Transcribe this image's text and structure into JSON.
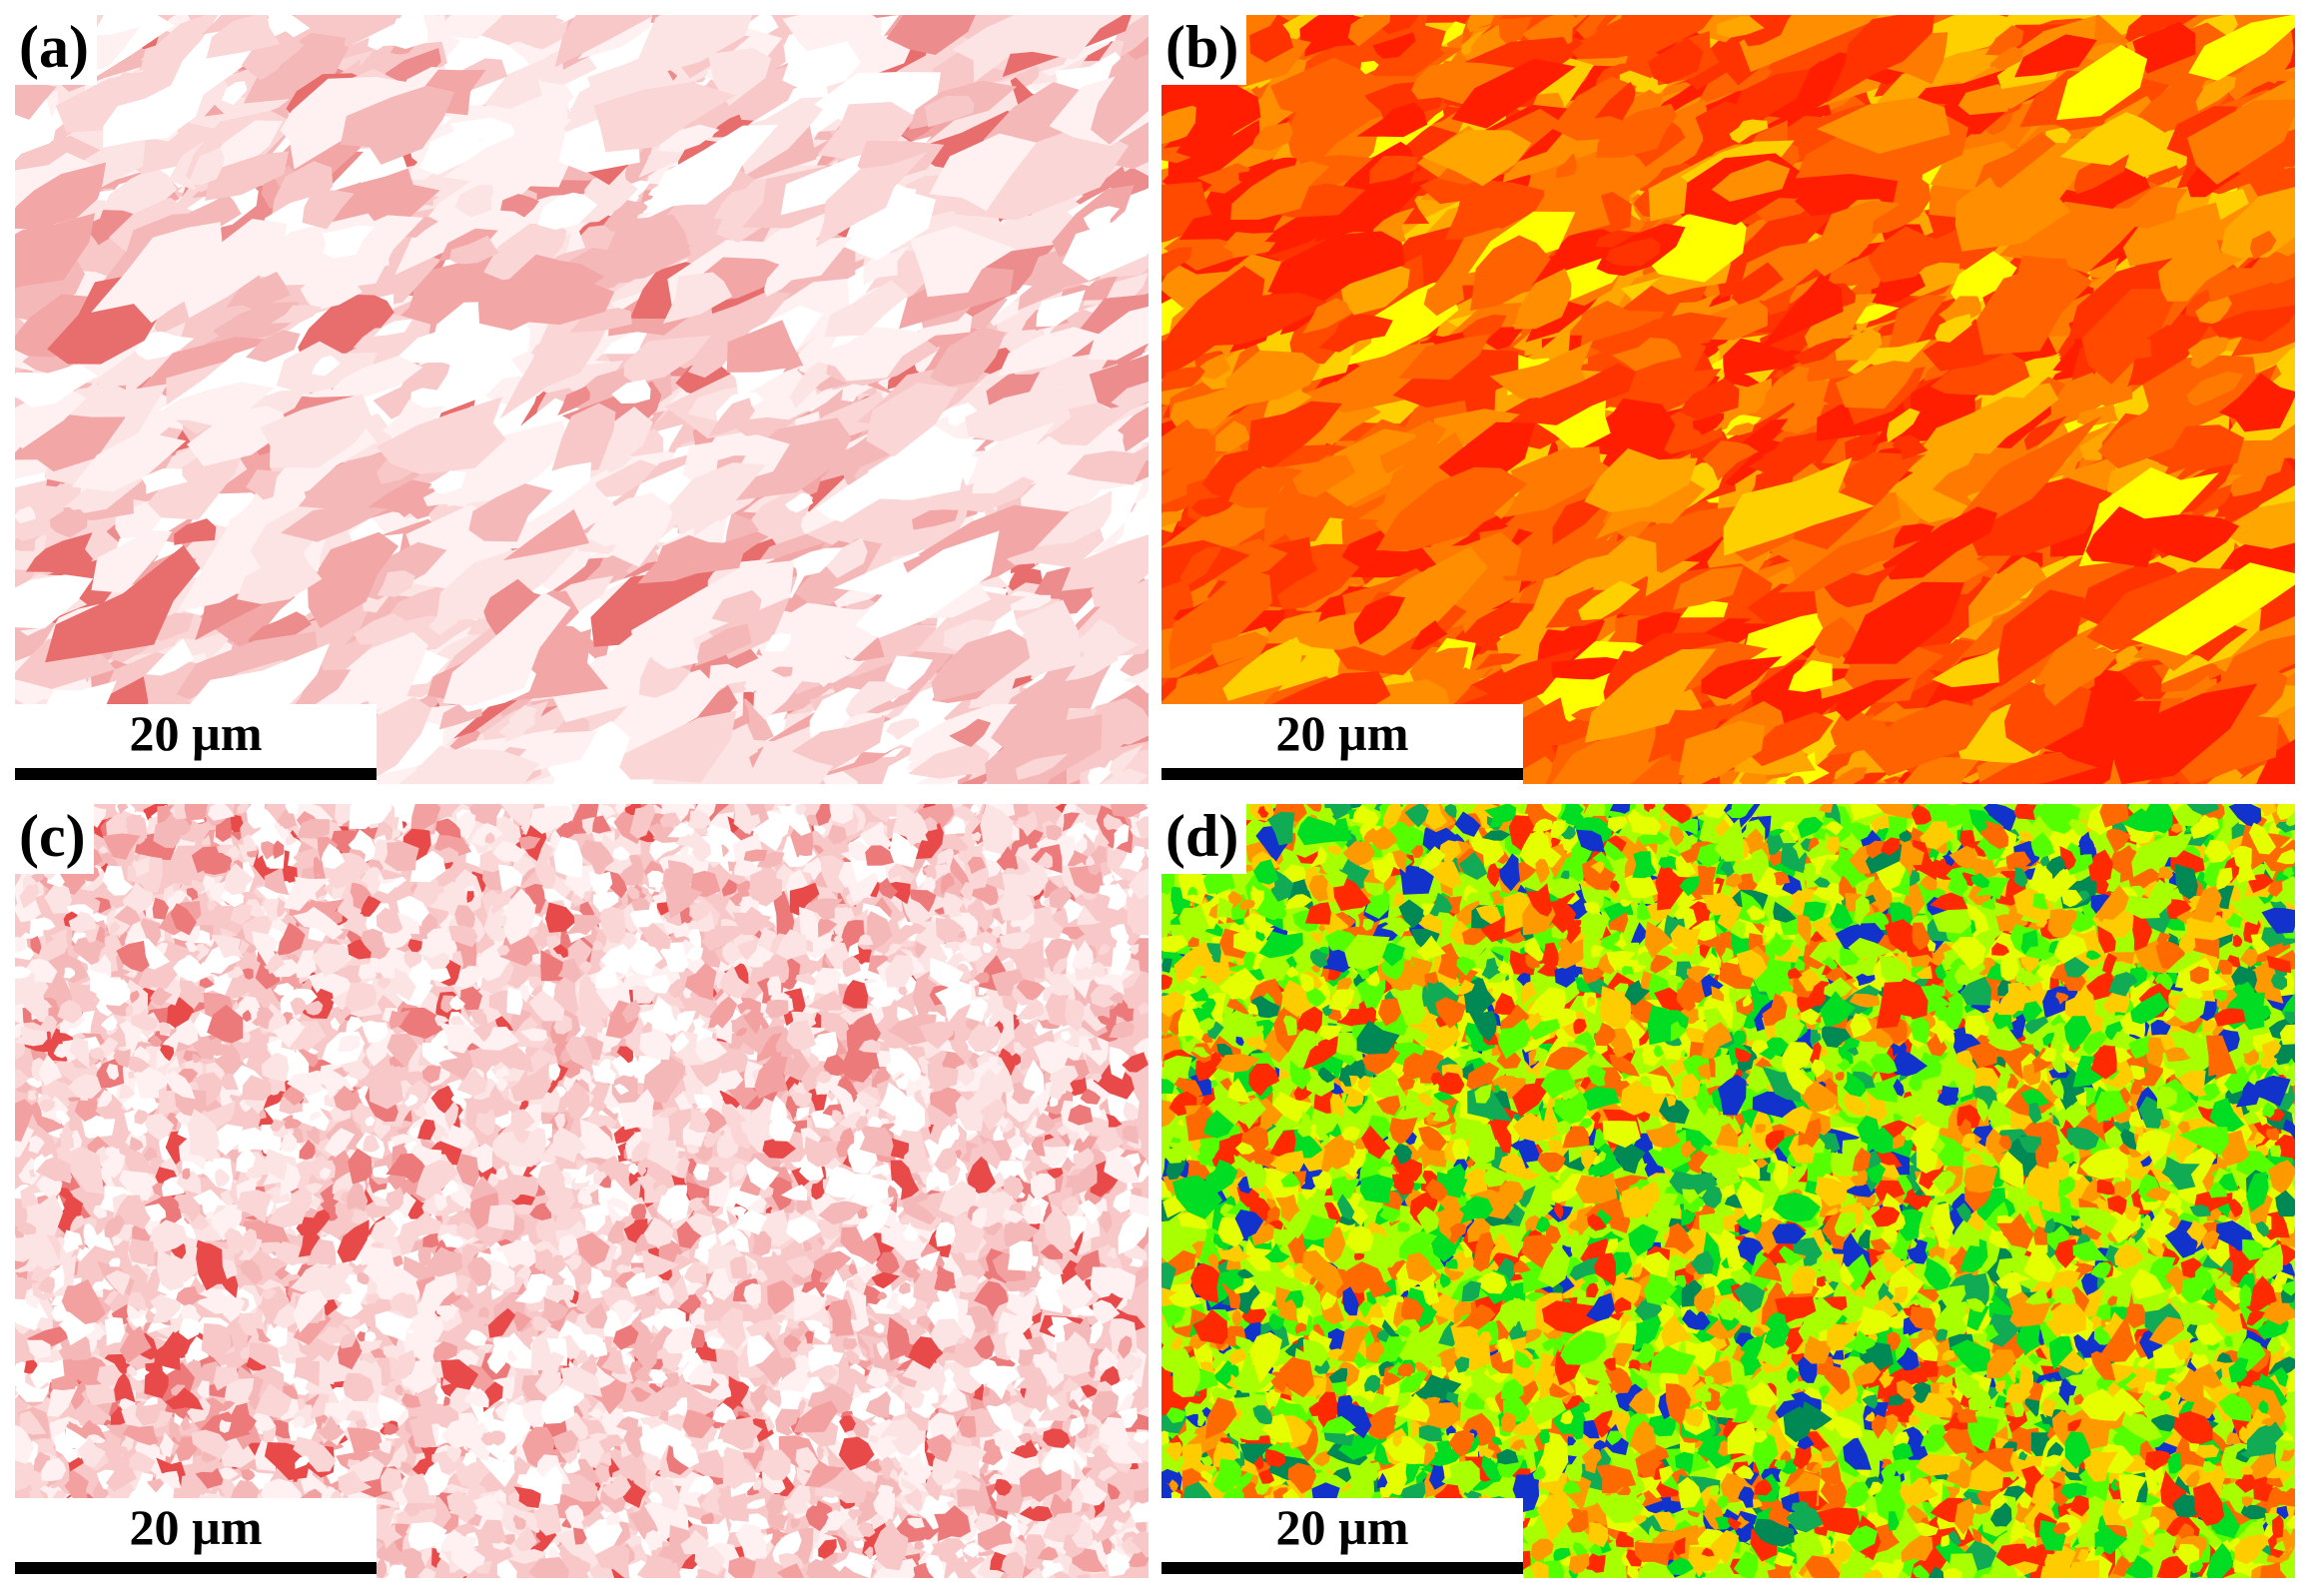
{
  "panels": [
    {
      "id": "a",
      "label": "(a)",
      "scale_bar": "20 µm",
      "palette": [
        "#ffffff",
        "#fff1f1",
        "#fde4e4",
        "#fbd6d6",
        "#f8c8c8",
        "#f5b8b8",
        "#f2a6a6",
        "#ec8c8c",
        "#e86d6d"
      ],
      "weights": [
        14,
        16,
        16,
        14,
        12,
        10,
        8,
        6,
        4
      ],
      "grain": "coarse-elongated"
    },
    {
      "id": "b",
      "label": "(b)",
      "scale_bar": "20 µm",
      "palette": [
        "#ff1f00",
        "#ff3300",
        "#ff4a00",
        "#ff6200",
        "#ff7a00",
        "#ff8f00",
        "#ffa600",
        "#ffd000",
        "#ffff00"
      ],
      "weights": [
        14,
        14,
        12,
        12,
        14,
        12,
        8,
        6,
        4
      ],
      "grain": "coarse-elongated"
    },
    {
      "id": "c",
      "label": "(c)",
      "scale_bar": "20 µm",
      "palette": [
        "#ffffff",
        "#fff1f1",
        "#fde4e4",
        "#fbd6d6",
        "#f8c8c8",
        "#f5b8b8",
        "#f2a0a0",
        "#ec7a7a",
        "#e84a4a"
      ],
      "weights": [
        16,
        16,
        16,
        14,
        12,
        10,
        8,
        6,
        5
      ],
      "grain": "fine-equiaxed"
    },
    {
      "id": "d",
      "label": "(d)",
      "scale_bar": "20 µm",
      "palette": [
        "#ff2a00",
        "#ff6a00",
        "#ff9900",
        "#ffcc00",
        "#e6ff00",
        "#a8ff00",
        "#55ff00",
        "#00dd22",
        "#11aa55",
        "#008855",
        "#1133cc"
      ],
      "weights": [
        10,
        10,
        10,
        12,
        14,
        14,
        12,
        8,
        5,
        4,
        5
      ],
      "grain": "fine-equiaxed"
    }
  ]
}
